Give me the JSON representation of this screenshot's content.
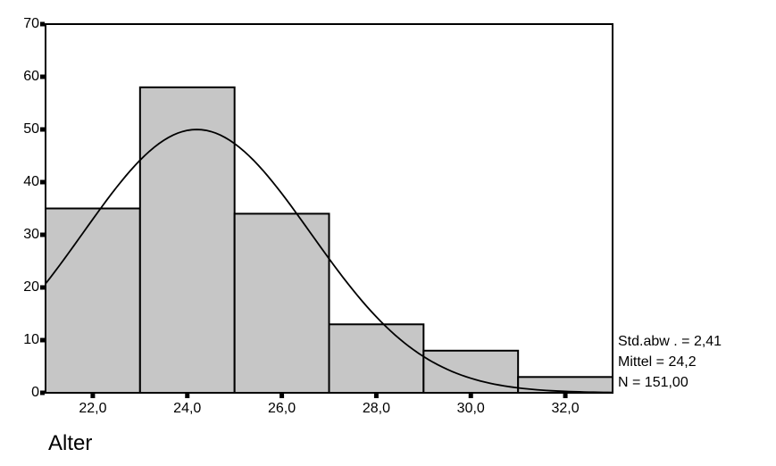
{
  "chart_data": {
    "type": "bar",
    "subtype": "histogram",
    "title": "",
    "xlabel": "Alter",
    "ylabel": "",
    "xlim": [
      21,
      33
    ],
    "ylim": [
      0,
      70
    ],
    "grid": false,
    "legend": null,
    "bin_edges": [
      21,
      23,
      25,
      27,
      29,
      31,
      33
    ],
    "counts": [
      35,
      58,
      34,
      13,
      8,
      3
    ],
    "x_tick_labels": [
      "22,0",
      "24,0",
      "26,0",
      "28,0",
      "30,0",
      "32,0"
    ],
    "x_tick_values": [
      22,
      24,
      26,
      28,
      30,
      32
    ],
    "y_tick_labels": [
      "0",
      "10",
      "20",
      "30",
      "40",
      "50",
      "60",
      "70"
    ],
    "y_tick_values": [
      0,
      10,
      20,
      30,
      40,
      50,
      60,
      70
    ],
    "normal_curve": {
      "mean": 24.2,
      "sd": 2.41,
      "n": 151,
      "bin_width": 2,
      "peak_height": 50
    },
    "colors": {
      "bar_fill": "#c6c6c6",
      "bar_stroke": "#000000",
      "curve": "#000000",
      "frame": "#000000",
      "background": "#ffffff",
      "text": "#000000"
    }
  },
  "annotations": {
    "stats_lines": [
      {
        "id": "stdabw",
        "text": "Std.abw . = 2,41"
      },
      {
        "id": "mittel",
        "text": "Mittel = 24,2"
      },
      {
        "id": "n",
        "text": "N = 151,00"
      }
    ]
  }
}
